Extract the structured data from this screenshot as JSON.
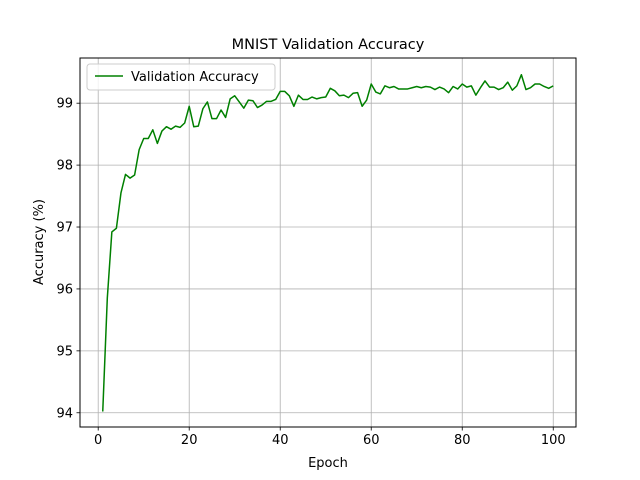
{
  "chart_data": {
    "type": "line",
    "title": "MNIST Validation Accuracy",
    "xlabel": "Epoch",
    "ylabel": "Accuracy (%)",
    "xlim": [
      -4,
      105
    ],
    "ylim": [
      93.77,
      99.73
    ],
    "xticks": [
      0,
      20,
      40,
      60,
      80,
      100
    ],
    "yticks": [
      94,
      95,
      96,
      97,
      98,
      99
    ],
    "grid": true,
    "legend": "top-left",
    "series": [
      {
        "name": "Validation Accuracy",
        "color": "#008000",
        "x": [
          1,
          2,
          3,
          4,
          5,
          6,
          7,
          8,
          9,
          10,
          11,
          12,
          13,
          14,
          15,
          16,
          17,
          18,
          19,
          20,
          21,
          22,
          23,
          24,
          25,
          26,
          27,
          28,
          29,
          30,
          31,
          32,
          33,
          34,
          35,
          36,
          37,
          38,
          39,
          40,
          41,
          42,
          43,
          44,
          45,
          46,
          47,
          48,
          49,
          50,
          51,
          52,
          53,
          54,
          55,
          56,
          57,
          58,
          59,
          60,
          61,
          62,
          63,
          64,
          65,
          66,
          67,
          68,
          69,
          70,
          71,
          72,
          73,
          74,
          75,
          76,
          77,
          78,
          79,
          80,
          81,
          82,
          83,
          84,
          85,
          86,
          87,
          88,
          89,
          90,
          91,
          92,
          93,
          94,
          95,
          96,
          97,
          98,
          99,
          100
        ],
        "y": [
          94.02,
          95.85,
          96.92,
          96.98,
          97.55,
          97.85,
          97.79,
          97.84,
          98.25,
          98.43,
          98.43,
          98.57,
          98.35,
          98.55,
          98.62,
          98.58,
          98.63,
          98.61,
          98.68,
          98.95,
          98.62,
          98.63,
          98.91,
          99.02,
          98.75,
          98.75,
          98.89,
          98.77,
          99.07,
          99.12,
          99.02,
          98.92,
          99.05,
          99.04,
          98.93,
          98.97,
          99.03,
          99.03,
          99.06,
          99.19,
          99.19,
          99.12,
          98.95,
          99.13,
          99.06,
          99.06,
          99.1,
          99.07,
          99.09,
          99.1,
          99.24,
          99.2,
          99.12,
          99.13,
          99.09,
          99.16,
          99.17,
          98.95,
          99.05,
          99.31,
          99.18,
          99.15,
          99.28,
          99.25,
          99.27,
          99.23,
          99.23,
          99.23,
          99.25,
          99.27,
          99.25,
          99.27,
          99.26,
          99.22,
          99.26,
          99.23,
          99.17,
          99.27,
          99.23,
          99.31,
          99.26,
          99.28,
          99.13,
          99.25,
          99.36,
          99.26,
          99.26,
          99.22,
          99.25,
          99.34,
          99.21,
          99.28,
          99.46,
          99.22,
          99.25,
          99.31,
          99.31,
          99.27,
          99.24,
          99.28
        ]
      }
    ]
  }
}
